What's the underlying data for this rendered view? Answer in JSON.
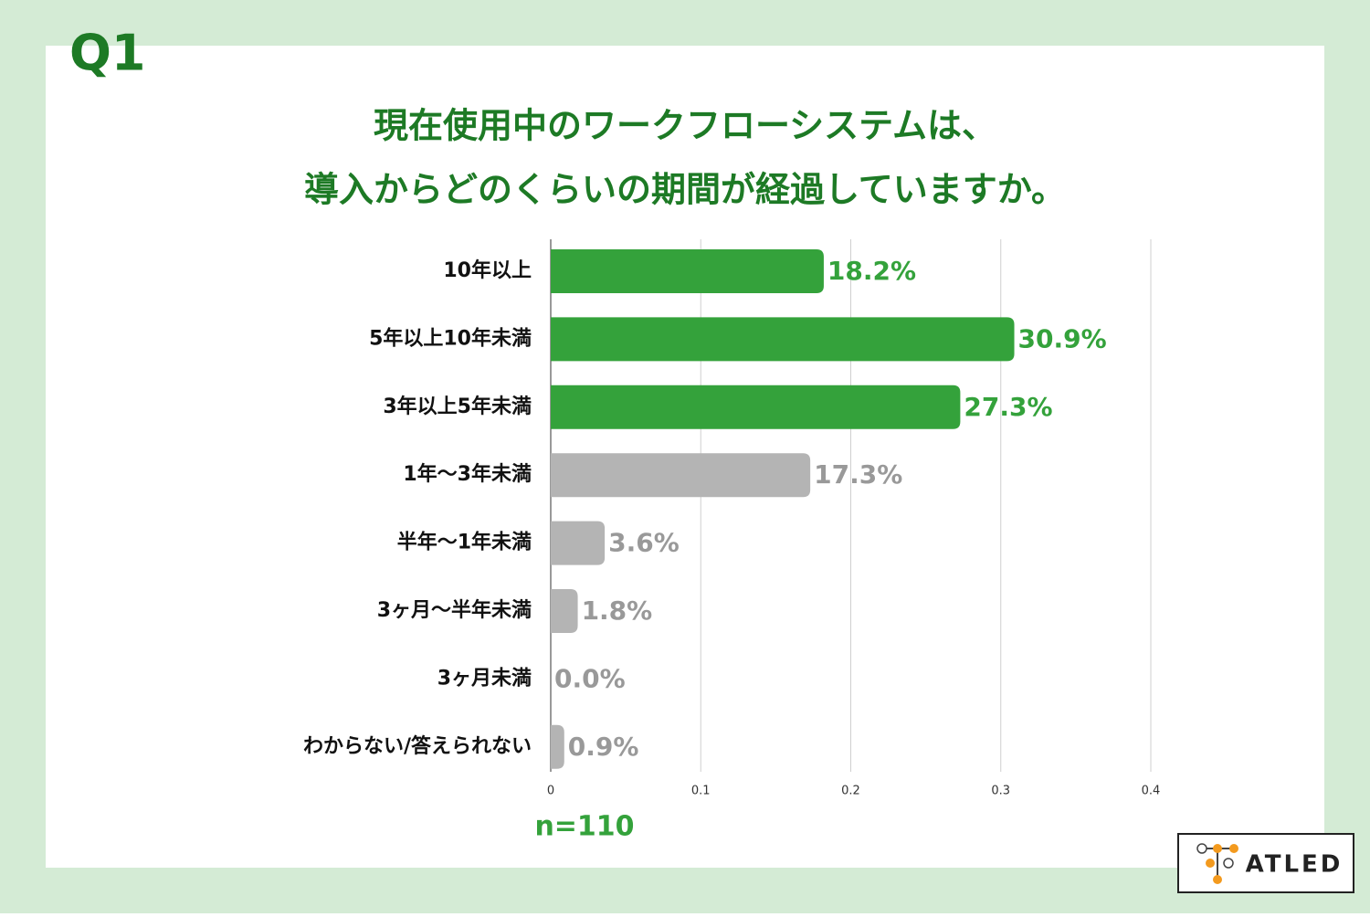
{
  "header": {
    "question": "Q1"
  },
  "chart_data": {
    "type": "hbar",
    "title": [
      "現在使用中のワークフローシステムは、",
      "導入からどのくらいの期間が経過していますか。"
    ],
    "categories": [
      "10年以上",
      "5年以上10年未満",
      "3年以上5年未満",
      "1年〜3年未満",
      "半年〜1年未満",
      "3ヶ月〜半年未満",
      "3ヶ月未満",
      "わからない/答えられない"
    ],
    "values": [
      0.182,
      0.309,
      0.273,
      0.173,
      0.036,
      0.018,
      0.0,
      0.009
    ],
    "value_labels": [
      "18.2%",
      "30.9%",
      "27.3%",
      "17.3%",
      "3.6%",
      "1.8%",
      "0.0%",
      "0.9%"
    ],
    "colors": [
      "#34a23b",
      "#34a23b",
      "#34a23b",
      "#b4b4b4",
      "#b4b4b4",
      "#b4b4b4",
      "#b4b4b4",
      "#b4b4b4"
    ],
    "label_colors": [
      "#34a23b",
      "#34a23b",
      "#34a23b",
      "#999999",
      "#999999",
      "#999999",
      "#999999",
      "#999999"
    ],
    "xlim": [
      0,
      0.4
    ],
    "xticks": [
      0,
      0.1,
      0.2,
      0.3,
      0.4
    ],
    "grid": true
  },
  "footer": {
    "sample": "n=110",
    "logo": "ATLED"
  }
}
